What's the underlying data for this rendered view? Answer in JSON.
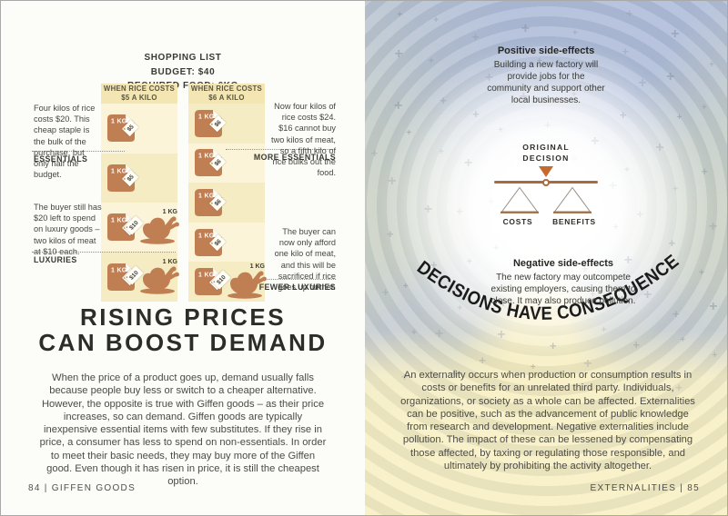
{
  "colors": {
    "terracotta": "#c07e53",
    "accent_orange": "#c46a2e",
    "beam_brown": "#a76b3e",
    "column_header_yellow": "#f3e6b2",
    "row_light": "#fbf4d8",
    "row_dark": "#f5ecc3"
  },
  "left_page": {
    "shopping_list": {
      "line1": "SHOPPING LIST",
      "line2": "BUDGET: $40",
      "line3": "REQUIRED FOOD: 6KG"
    },
    "diagram": {
      "kg_label": "1 KG",
      "columns": [
        {
          "header": "WHEN RICE COSTS",
          "header2": "$5 A KILO",
          "rice_price": "$5",
          "meat_price": "$10",
          "rows": [
            [
              "rice"
            ],
            [
              "rice"
            ],
            [
              "rice",
              "meat"
            ],
            [
              "rice",
              "meat"
            ]
          ]
        },
        {
          "header": "WHEN RICE COSTS",
          "header2": "$6 A KILO",
          "rice_price": "$6",
          "meat_price": "$10",
          "rows": [
            [
              "rice"
            ],
            [
              "rice"
            ],
            [
              "rice"
            ],
            [
              "rice"
            ],
            [
              "rice",
              "meat"
            ]
          ]
        }
      ],
      "annotations": {
        "essentials_note": "Four kilos of rice costs $20. This cheap staple is the bulk of the purchase, but only half the budget.",
        "essentials_label": "ESSENTIALS",
        "luxuries_note": "The buyer still has $20 left to spend on luxury goods – two kilos of meat at $10 each.",
        "luxuries_label": "LUXURIES",
        "more_essentials_note": "Now four kilos of rice costs $24. $16 cannot buy two kilos of meat, so a fifth kilo of rice bulks out the food.",
        "more_essentials_label": "MORE ESSENTIALS",
        "fewer_luxuries_note": "The buyer can now only afford one kilo of meat, and this will be sacrificed if rice goes up further.",
        "fewer_luxuries_label": "FEWER LUXURIES"
      }
    },
    "title_line1": "RISING PRICES",
    "title_line2": "CAN BOOST DEMAND",
    "body": "When the price of a product goes up, demand usually falls because people buy less or switch to a cheaper alternative. However, the opposite is true with Giffen goods – as their price increases, so can demand. Giffen goods are typically inexpensive essential items with few substitutes. If they rise in price, a consumer has less to spend on non-essentials. In order to meet their basic needs, they may buy more of the Giffen good. Even though it has risen in price, it is still the cheapest option.",
    "footer": "84 | GIFFEN GOODS"
  },
  "right_page": {
    "positive_heading": "Positive side-effects",
    "positive_text": "Building a new factory will provide jobs for the community and support other local businesses.",
    "decision_line1": "ORIGINAL",
    "decision_line2": "DECISION",
    "costs_label": "COSTS",
    "benefits_label": "BENEFITS",
    "negative_heading": "Negative side-effects",
    "negative_text": "The new factory may outcompete existing employers, causing them to close. It may also produce pollution.",
    "arc_text": "DECISIONS HAVE CONSEQUENCES",
    "body": "An externality occurs when production or consumption results in costs or benefits for an unrelated third party. Individuals, organizations, or society as a whole can be affected. Externalities can be positive, such as the advancement of public knowledge from research and development. Negative externalities include pollution. The impact of these can be lessened by compensating those affected, by taxing or regulating those responsible, and ultimately by prohibiting the activity altogether.",
    "footer": "EXTERNALITIES | 85"
  }
}
